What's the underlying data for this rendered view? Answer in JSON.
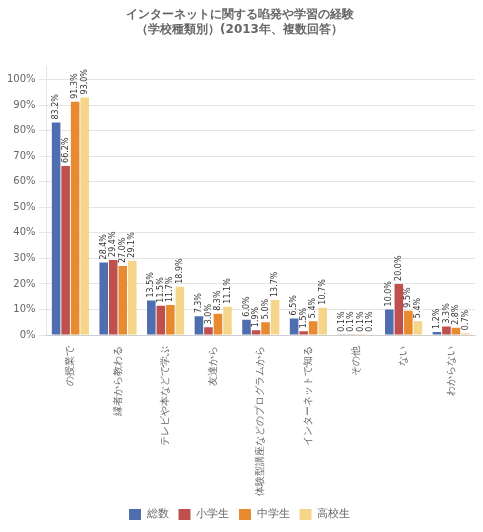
{
  "chart_data": {
    "type": "bar",
    "title": "インターネットに関する啗発や学習の経験",
    "subtitle": "（学校種類別）(2013年、複数回答）",
    "categories": [
      "の授業で",
      "縁者から教わる",
      "テレビや本などで学ぶ",
      "友達から",
      "体験型講座などのプログラムから",
      "インターネットで知る",
      "その他",
      "ない",
      "わからない"
    ],
    "series": [
      {
        "name": "総数",
        "color": "#4F6EAF",
        "values": [
          83.2,
          28.4,
          13.5,
          7.3,
          6.0,
          6.5,
          0.1,
          10.0,
          1.2
        ],
        "value_labels": [
          "83.2%",
          "28.4%",
          "13.5%",
          "7.3%",
          "6.0%",
          "6.5%",
          "0.1%",
          "10.0%",
          "1.2%"
        ]
      },
      {
        "name": "小学生",
        "color": "#C0504D",
        "values": [
          66.2,
          29.4,
          11.5,
          3.0,
          1.9,
          1.5,
          0.1,
          20.0,
          3.3
        ],
        "value_labels": [
          "66.2%",
          "29.4%",
          "11.5%",
          "3.0%",
          "1.9%",
          "1.5%",
          "0.1%",
          "20.0%",
          "3.3%"
        ]
      },
      {
        "name": "中学生",
        "color": "#E78A30",
        "values": [
          91.3,
          27.0,
          11.7,
          8.3,
          5.0,
          5.4,
          0.1,
          9.5,
          2.8
        ],
        "value_labels": [
          "91.3%",
          "27.0%",
          "11.7%",
          "8.3%",
          "5.0%",
          "5.4%",
          "0.1%",
          "9.5%",
          "2.8%"
        ]
      },
      {
        "name": "高校生",
        "color": "#F5D58A",
        "values": [
          93.0,
          29.1,
          18.9,
          11.1,
          13.7,
          10.7,
          0.1,
          5.4,
          0.7
        ],
        "value_labels": [
          "93.0%",
          "29.1%",
          "18.9%",
          "11.1%",
          "13.7%",
          "10.7%",
          "0.1%",
          "5.4%",
          "0.7%"
        ]
      }
    ],
    "ylim": [
      0,
      105
    ],
    "yticks": [
      {
        "value": 0,
        "label": "0%"
      },
      {
        "value": 10,
        "label": "10%"
      },
      {
        "value": 20,
        "label": "20%"
      },
      {
        "value": 30,
        "label": "30%"
      },
      {
        "value": 40,
        "label": "40%"
      },
      {
        "value": 50,
        "label": "50%"
      },
      {
        "value": 60,
        "label": "60%"
      },
      {
        "value": 70,
        "label": "70%"
      },
      {
        "value": 80,
        "label": "80%"
      },
      {
        "value": 90,
        "label": "90%"
      },
      {
        "value": 100,
        "label": "100%"
      }
    ],
    "grid": true,
    "legend": "bottom",
    "data_labels": true
  }
}
